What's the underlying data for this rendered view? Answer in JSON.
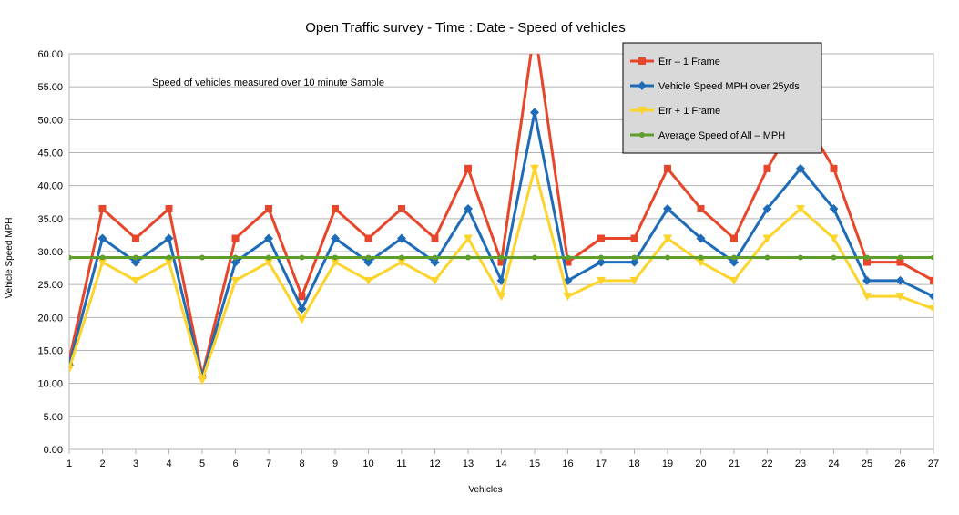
{
  "chart_data": {
    "type": "line",
    "title": "Open Traffic survey - Time :  Date - Speed of vehicles",
    "annotation": "Speed of vehicles measured over 10 minute Sample",
    "xlabel": "Vehicles",
    "ylabel": "Vehicle Speed MPH",
    "ylim": [
      0,
      60
    ],
    "ytick_step": 5,
    "ytick_format_decimals": 2,
    "grid": true,
    "legend_position": "top-right",
    "x": [
      1,
      2,
      3,
      4,
      5,
      6,
      7,
      8,
      9,
      10,
      11,
      12,
      13,
      14,
      15,
      16,
      17,
      18,
      19,
      20,
      21,
      22,
      23,
      24,
      25,
      26,
      27
    ],
    "series": [
      {
        "name": "Err – 1 Frame",
        "color": "#e8462a",
        "marker": "square",
        "values": [
          13.5,
          36.5,
          32,
          36.5,
          11.2,
          32,
          36.5,
          23.2,
          36.5,
          32,
          36.5,
          32,
          42.6,
          28.4,
          63.9,
          28.4,
          32,
          32,
          42.6,
          36.5,
          32,
          42.6,
          51.1,
          42.6,
          28.4,
          28.4,
          25.6
        ]
      },
      {
        "name": "Vehicle Speed MPH over 25yds",
        "color": "#1e6bb8",
        "marker": "diamond",
        "values": [
          12.8,
          32,
          28.4,
          32,
          10.9,
          28.4,
          32,
          21.3,
          32,
          28.4,
          32,
          28.4,
          36.5,
          25.6,
          51.1,
          25.6,
          28.4,
          28.4,
          36.5,
          32,
          28.4,
          36.5,
          42.6,
          36.5,
          25.6,
          25.6,
          23.2
        ]
      },
      {
        "name": "Err + 1 Frame",
        "color": "#fdd42c",
        "marker": "triangle-down",
        "values": [
          12.2,
          28.4,
          25.6,
          28.4,
          10.5,
          25.6,
          28.4,
          19.7,
          28.4,
          25.6,
          28.4,
          25.6,
          32,
          23.2,
          42.6,
          23.2,
          25.6,
          25.6,
          32,
          28.4,
          25.6,
          32,
          36.5,
          32,
          23.2,
          23.2,
          21.3
        ]
      },
      {
        "name": "Average Speed of All – MPH",
        "color": "#5e9e2a",
        "marker": "circle",
        "values": [
          29.1,
          29.1,
          29.1,
          29.1,
          29.1,
          29.1,
          29.1,
          29.1,
          29.1,
          29.1,
          29.1,
          29.1,
          29.1,
          29.1,
          29.1,
          29.1,
          29.1,
          29.1,
          29.1,
          29.1,
          29.1,
          29.1,
          29.1,
          29.1,
          29.1,
          29.1,
          29.1
        ]
      }
    ]
  }
}
